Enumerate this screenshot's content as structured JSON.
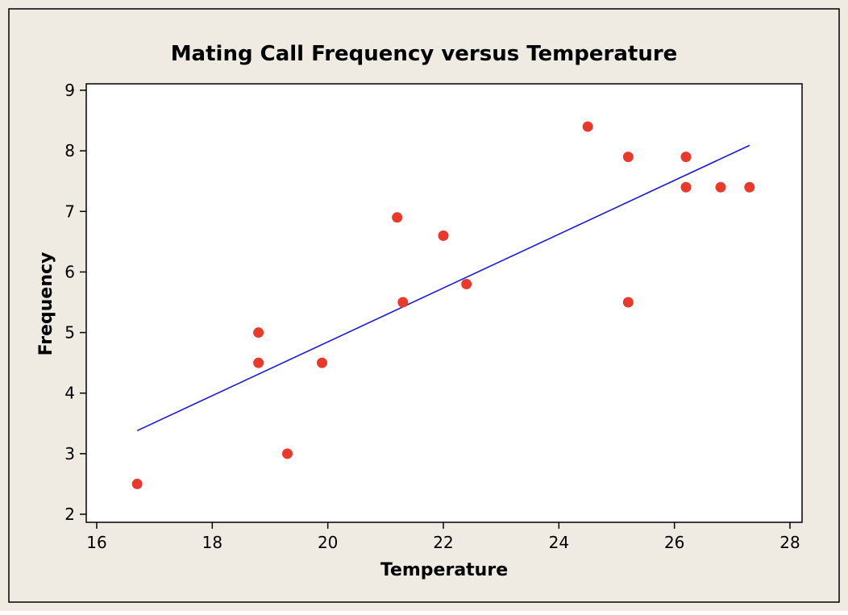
{
  "chart_data": {
    "type": "scatter",
    "title": "Mating Call Frequency versus Temperature",
    "xlabel": "Temperature",
    "ylabel": "Frequency",
    "xlim": [
      16,
      28
    ],
    "ylim": [
      2,
      9
    ],
    "x_ticks": [
      16,
      18,
      20,
      22,
      24,
      26,
      28
    ],
    "y_ticks": [
      2,
      3,
      4,
      5,
      6,
      7,
      8,
      9
    ],
    "grid": false,
    "legend": "none",
    "colors": {
      "outer_background": "#efebe3",
      "plot_background": "#ffffff",
      "point": "#e8392b",
      "fit_line": "#1a1adf"
    },
    "points": [
      {
        "x": 16.7,
        "y": 2.5
      },
      {
        "x": 18.8,
        "y": 5.0
      },
      {
        "x": 18.8,
        "y": 4.5
      },
      {
        "x": 19.3,
        "y": 3.0
      },
      {
        "x": 19.9,
        "y": 4.5
      },
      {
        "x": 21.2,
        "y": 6.9
      },
      {
        "x": 21.3,
        "y": 5.5
      },
      {
        "x": 22.0,
        "y": 6.6
      },
      {
        "x": 22.4,
        "y": 5.8
      },
      {
        "x": 24.5,
        "y": 8.4
      },
      {
        "x": 25.2,
        "y": 7.9
      },
      {
        "x": 25.2,
        "y": 5.5
      },
      {
        "x": 26.2,
        "y": 7.9
      },
      {
        "x": 26.2,
        "y": 7.4
      },
      {
        "x": 26.8,
        "y": 7.4
      },
      {
        "x": 27.3,
        "y": 7.4
      }
    ],
    "fit_line": {
      "x": [
        16.7,
        27.3
      ],
      "y": [
        3.38,
        8.09
      ]
    }
  }
}
